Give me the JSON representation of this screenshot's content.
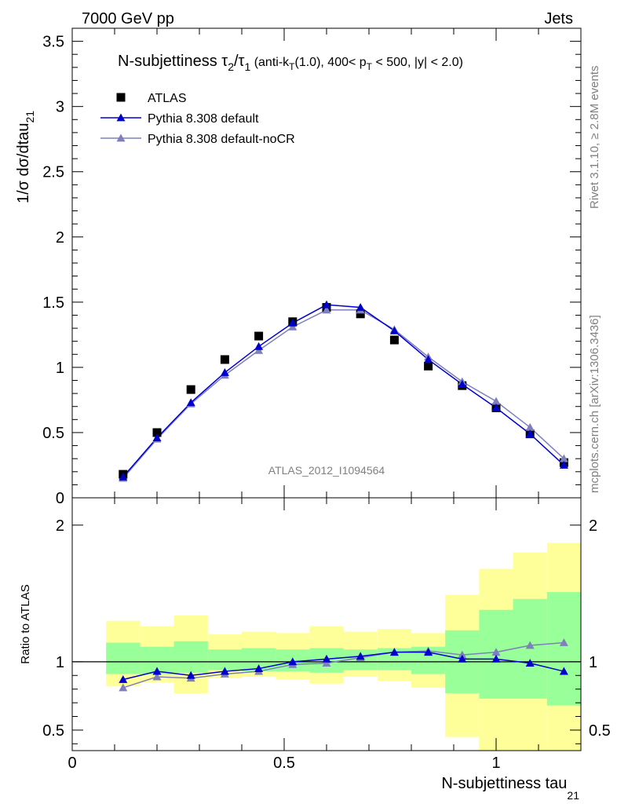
{
  "header": {
    "left": "7000 GeV pp",
    "right": "Jets"
  },
  "side": {
    "rivet": "Rivet 3.1.10, ≥ 2.8M events",
    "mcplots": "mcplots.cern.ch [arXiv:1306.3436]"
  },
  "watermark": "ATLAS_2012_I1094564",
  "title": {
    "main": "N-subjettiness ",
    "tau2": "τ",
    "sub2": "2",
    "slash": "/",
    "tau1": "τ",
    "sub1": "1",
    "cuts_a": " (anti-k",
    "cuts_T": "T",
    "cuts_b": "(1.0), 400< p",
    "cuts_T2": "T",
    "cuts_c": " < 500, |y| < 2.0)"
  },
  "legend": [
    {
      "label": "ATLAS",
      "marker": "square",
      "color": "#000000"
    },
    {
      "label": "Pythia 8.308 default",
      "marker": "triangle",
      "color": "#0000cc"
    },
    {
      "label": "Pythia 8.308 default-noCR",
      "marker": "triangle",
      "color": "#7f7fbf"
    }
  ],
  "colors": {
    "band_inner": "#99ff99",
    "band_outer": "#ffff99",
    "data": "#000000",
    "mc1": "#0000cc",
    "mc2": "#7f7fbf"
  },
  "chart_data": [
    {
      "type": "scatter",
      "ylabel_main": "1/σ dσ/dtau",
      "ylabel_sub": "21",
      "xlim": [
        0,
        1.2
      ],
      "ylim": [
        0,
        3.6
      ],
      "yticks": [
        "0",
        "0.5",
        "1",
        "1.5",
        "2",
        "2.5",
        "3",
        "3.5"
      ],
      "ytick_values": [
        0,
        0.5,
        1,
        1.5,
        2,
        2.5,
        3,
        3.5
      ],
      "x": [
        0.12,
        0.2,
        0.28,
        0.36,
        0.44,
        0.52,
        0.6,
        0.68,
        0.76,
        0.84,
        0.92,
        1.0,
        1.08,
        1.16
      ],
      "series": [
        {
          "name": "ATLAS",
          "values": [
            0.18,
            0.5,
            0.83,
            1.06,
            1.24,
            1.35,
            1.46,
            1.41,
            1.21,
            1.01,
            0.86,
            0.69,
            0.49,
            0.27
          ]
        },
        {
          "name": "Pythia 8.308 default",
          "values": [
            0.16,
            0.46,
            0.73,
            0.96,
            1.16,
            1.34,
            1.48,
            1.46,
            1.28,
            1.06,
            0.87,
            0.69,
            0.49,
            0.25
          ]
        },
        {
          "name": "Pythia 8.308 default-noCR",
          "values": [
            0.15,
            0.45,
            0.72,
            0.94,
            1.13,
            1.31,
            1.44,
            1.44,
            1.29,
            1.08,
            0.89,
            0.74,
            0.54,
            0.3
          ]
        }
      ]
    },
    {
      "type": "line",
      "ylabel": "Ratio to ATLAS",
      "xlabel_main": "N-subjettiness tau",
      "xlabel_sub": "21",
      "xlim": [
        0,
        1.2
      ],
      "ylim": [
        0.35,
        2.2
      ],
      "yticks": [
        "0.5",
        "1",
        "2"
      ],
      "ytick_values": [
        0.5,
        1,
        2
      ],
      "xticks": [
        "0",
        "0.5",
        "1"
      ],
      "xtick_values": [
        0,
        0.5,
        1
      ],
      "x": [
        0.12,
        0.2,
        0.28,
        0.36,
        0.44,
        0.52,
        0.6,
        0.68,
        0.76,
        0.84,
        0.92,
        1.0,
        1.08,
        1.16
      ],
      "bin_edges": [
        0.08,
        0.16,
        0.24,
        0.32,
        0.4,
        0.48,
        0.56,
        0.64,
        0.72,
        0.8,
        0.88,
        0.96,
        1.04,
        1.12,
        1.2
      ],
      "band_inner_low": [
        0.91,
        0.91,
        0.92,
        0.94,
        0.93,
        0.93,
        0.92,
        0.94,
        0.94,
        0.91,
        0.77,
        0.73,
        0.73,
        0.68
      ],
      "band_inner_high": [
        1.14,
        1.11,
        1.15,
        1.09,
        1.1,
        1.09,
        1.1,
        1.09,
        1.1,
        1.11,
        1.23,
        1.38,
        1.46,
        1.51
      ],
      "band_outer_low": [
        0.82,
        0.85,
        0.77,
        0.88,
        0.89,
        0.87,
        0.84,
        0.89,
        0.86,
        0.81,
        0.45,
        0.3,
        0.3,
        0.3
      ],
      "band_outer_high": [
        1.3,
        1.26,
        1.34,
        1.2,
        1.22,
        1.21,
        1.26,
        1.22,
        1.24,
        1.21,
        1.49,
        1.68,
        1.8,
        1.87
      ],
      "series": [
        {
          "name": "Pythia 8.308 default",
          "values": [
            0.87,
            0.93,
            0.9,
            0.93,
            0.95,
            1.0,
            1.02,
            1.04,
            1.07,
            1.07,
            1.02,
            1.02,
            0.99,
            0.93
          ]
        },
        {
          "name": "Pythia 8.308 default-noCR",
          "values": [
            0.81,
            0.89,
            0.88,
            0.91,
            0.93,
            0.98,
            0.99,
            1.03,
            1.07,
            1.08,
            1.05,
            1.07,
            1.12,
            1.14
          ]
        }
      ]
    }
  ]
}
